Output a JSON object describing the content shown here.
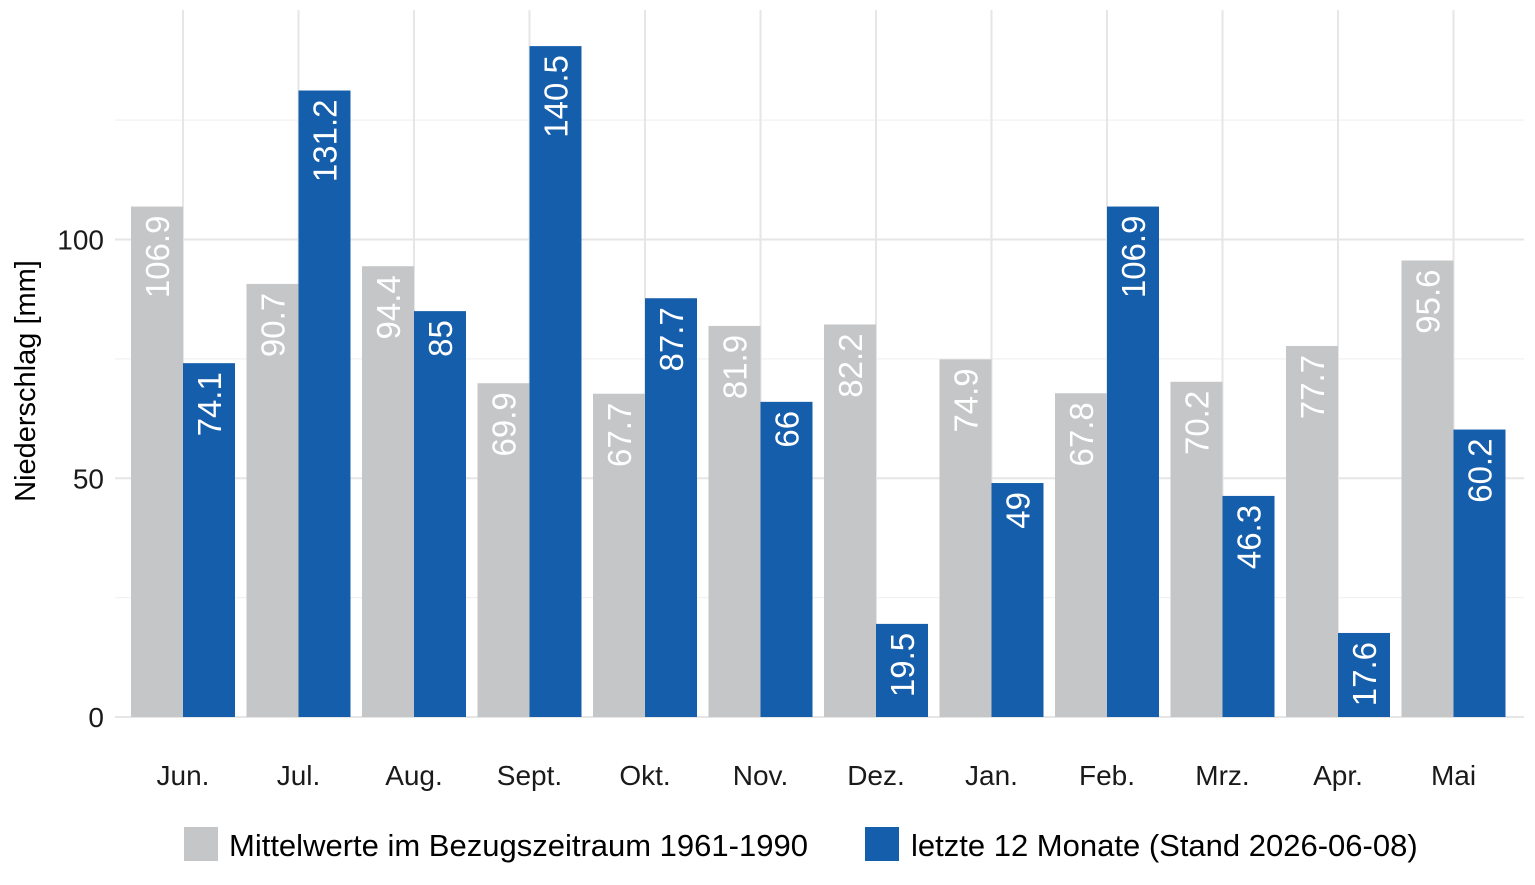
{
  "chart_data": {
    "type": "bar",
    "ylabel": "Niederschlag [mm]",
    "xlabel": "",
    "ylim": [
      0,
      141
    ],
    "yticks": [
      0,
      50,
      100
    ],
    "grid": true,
    "legend_position": "bottom",
    "categories": [
      "Jun.",
      "Jul.",
      "Aug.",
      "Sept.",
      "Okt.",
      "Nov.",
      "Dez.",
      "Jan.",
      "Feb.",
      "Mrz.",
      "Apr.",
      "Mai"
    ],
    "series": [
      {
        "name": "Mittelwerte im Bezugszeitraum 1961-1990",
        "color": "#c4c6c7",
        "values": [
          106.9,
          90.7,
          94.4,
          69.9,
          67.7,
          81.9,
          82.2,
          74.9,
          67.8,
          70.2,
          77.7,
          95.6
        ],
        "labels": [
          "106.9",
          "90.7",
          "94.4",
          "69.9",
          "67.7",
          "81.9",
          "82.2",
          "74.9",
          "67.8",
          "70.2",
          "77.7",
          "95.6"
        ]
      },
      {
        "name": "letzte 12 Monate (Stand 2026-06-08)",
        "color": "#155eab",
        "values": [
          74.1,
          131.2,
          85,
          140.5,
          87.7,
          66,
          19.5,
          49,
          106.9,
          46.3,
          17.6,
          60.2
        ],
        "labels": [
          "74.1",
          "131.2",
          "85",
          "140.5",
          "87.7",
          "66",
          "19.5",
          "49",
          "106.9",
          "46.3",
          "17.6",
          "60.2"
        ]
      }
    ]
  }
}
